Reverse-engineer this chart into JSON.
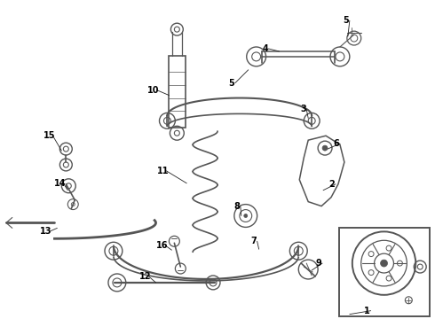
{
  "bg_color": "#ffffff",
  "line_color": "#555555",
  "figsize": [
    4.9,
    3.6
  ],
  "dpi": 100
}
